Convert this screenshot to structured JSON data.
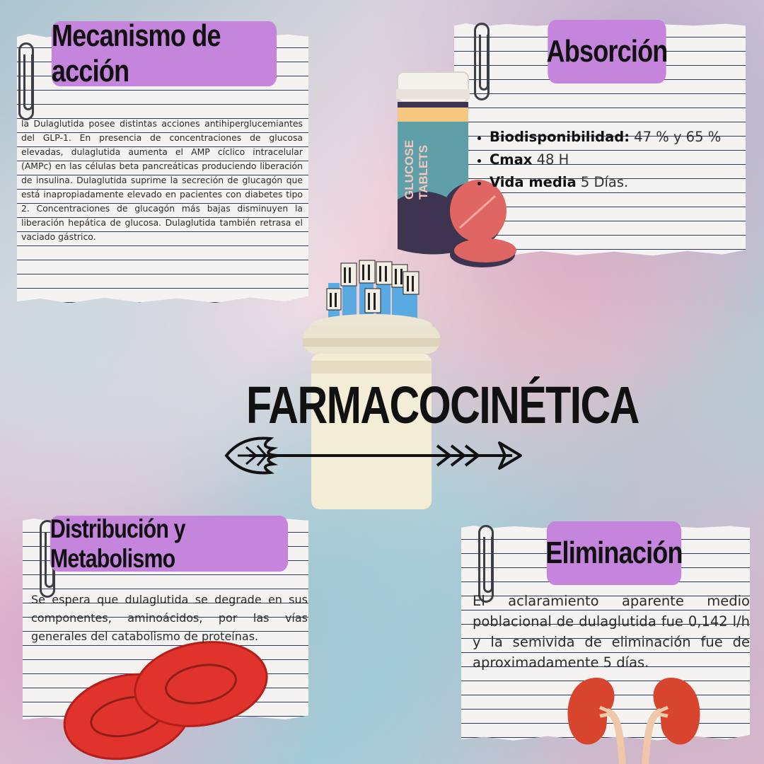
{
  "title": "FARMACOCINÉTICA",
  "sections": {
    "mecanismo": {
      "title": "Mecanismo de acción",
      "text": "la Dulaglutida posee distintas acciones antihiperglucemiantes del GLP-1. En presencia de concentraciones de glucosa elevadas, dulaglutida aumenta el AMP cíclico intracelular (AMPc) en las células beta pancreáticas produciendo liberación de insulina. Dulaglutida suprime la secreción de glucagón que está inapropiadamente elevado en pacientes con diabetes tipo 2. Concentraciones de glucagón más bajas disminuyen la liberación hepática de glucosa. Dulaglutida también retrasa el vaciado gástrico."
    },
    "absorcion": {
      "title": "Absorción",
      "items": [
        {
          "label": "Biodisponibilidad:",
          "value": "47 % y 65 %"
        },
        {
          "label": "Cmax",
          "value": "48 H"
        },
        {
          "label": "Vida media",
          "value": "5 Días."
        }
      ]
    },
    "distribucion": {
      "title": "Distribución y Metabolismo",
      "text": "Se espera que dulaglutida se degrade en sus componentes, aminoácidos, por las vías generales del catabolismo de proteínas."
    },
    "eliminacion": {
      "title": "Eliminación",
      "text": "El aclaramiento aparente medio poblacional de dulaglutida fue 0,142 l/h y la semivida de eliminación fue de aproximadamente 5 días."
    }
  },
  "illustrations": {
    "bottle_label": [
      "GLUCOSE",
      "TABLETS"
    ]
  },
  "colors": {
    "title_box": "#c585dd",
    "paper": "#f4f3f1",
    "rule_lines": "#2a3a5c",
    "pill": "#e06663",
    "blood_cell": "#e0332c",
    "kidney": "#d8452f"
  }
}
